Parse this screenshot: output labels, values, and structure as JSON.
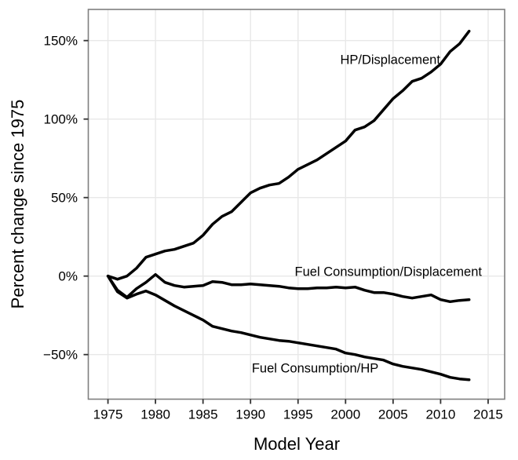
{
  "figure": {
    "background": "#ffffff",
    "chart_data": {
      "type": "line",
      "title": "",
      "xlabel": "Model Year",
      "ylabel": "Percent change since 1975",
      "xlim": [
        1972.93,
        2016.74
      ],
      "ylim": [
        -78.4,
        169.85
      ],
      "grid": "major-only",
      "legend_position": "none (labels drawn inline on plot)",
      "x_ticks": {
        "values": [
          1975,
          1980,
          1985,
          1990,
          1995,
          2000,
          2005,
          2010,
          2015
        ],
        "labels": [
          "1975",
          "1980",
          "1985",
          "1990",
          "1995",
          "2000",
          "2005",
          "2010",
          "2015"
        ]
      },
      "y_ticks": {
        "values": [
          150,
          100,
          50,
          0,
          -50
        ],
        "labels": [
          "150%",
          "100%",
          "50%",
          "0%",
          "−50%"
        ]
      },
      "x": [
        1975,
        1976,
        1977,
        1978,
        1979,
        1980,
        1981,
        1982,
        1983,
        1984,
        1985,
        1986,
        1987,
        1988,
        1989,
        1990,
        1991,
        1992,
        1993,
        1994,
        1995,
        1996,
        1997,
        1998,
        1999,
        2000,
        2001,
        2002,
        2003,
        2004,
        2005,
        2006,
        2007,
        2008,
        2009,
        2010,
        2011,
        2012,
        2013
      ],
      "series": [
        {
          "name": "HP/Displacement",
          "values": [
            0,
            -2,
            0,
            5,
            12,
            14,
            16,
            17,
            19,
            21,
            26,
            33,
            38,
            41,
            47,
            53,
            56,
            58,
            59,
            63,
            68,
            71,
            74,
            78,
            82,
            86,
            93,
            95,
            99,
            106,
            113,
            118,
            124,
            126,
            130,
            135,
            143,
            148,
            156
          ]
        },
        {
          "name": "Fuel Consumption/Displacement",
          "values": [
            0,
            -9,
            -13.5,
            -8,
            -4,
            1,
            -4,
            -6,
            -7,
            -6.5,
            -6,
            -3.5,
            -4,
            -5.5,
            -5.5,
            -5,
            -5.5,
            -6,
            -6.5,
            -7.5,
            -8,
            -8,
            -7.5,
            -7.5,
            -7,
            -7.5,
            -7,
            -9,
            -10.5,
            -10.5,
            -11.5,
            -13,
            -14,
            -13,
            -12,
            -15,
            -16.3,
            -15.5,
            -15
          ]
        },
        {
          "name": "Fuel Consumption/HP",
          "values": [
            0,
            -10,
            -14,
            -11.5,
            -9.5,
            -12,
            -15.5,
            -19,
            -22,
            -25,
            -28,
            -32,
            -33.5,
            -35,
            -36,
            -37.5,
            -39,
            -40,
            -41,
            -41.5,
            -42.5,
            -43.5,
            -44.5,
            -45.5,
            -46.5,
            -49,
            -50,
            -51.5,
            -52.5,
            -53.5,
            -56,
            -57.5,
            -58.5,
            -59.5,
            -61,
            -62.5,
            -64.5,
            -65.5,
            -66
          ]
        }
      ],
      "annotations": [
        {
          "text": "HP/Displacement",
          "x": 2004.7,
          "y": 137.9
        },
        {
          "text": "Fuel Consumption/Displacement",
          "x": 2004.5,
          "y": 2.9
        },
        {
          "text": "Fuel Consumption/HP",
          "x": 1996.8,
          "y": -58.6
        }
      ],
      "style": {
        "line_color": "#000000",
        "grid_color": "#e8e8e8",
        "panel_border_color": "#7f7f7f",
        "tick_color": "#333333",
        "text_color": "#000000"
      }
    }
  }
}
